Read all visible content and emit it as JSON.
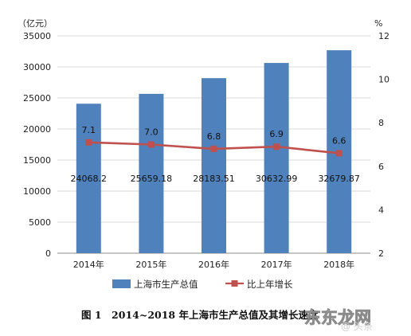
{
  "chart_data": {
    "type": "bar",
    "categories": [
      "2014年",
      "2015年",
      "2016年",
      "2017年",
      "2018年"
    ],
    "series": [
      {
        "name": "上海市生产总值",
        "type": "bar",
        "axis": "left",
        "color": "#4f81bd",
        "values": [
          24068.2,
          25659.18,
          28183.51,
          30632.99,
          32679.87
        ],
        "labels": [
          "24068.2",
          "25659.18",
          "28183.51",
          "30632.99",
          "32679.87"
        ]
      },
      {
        "name": "比上年增长",
        "type": "line",
        "axis": "right",
        "color": "#c0504d",
        "values": [
          7.1,
          7.0,
          6.8,
          6.9,
          6.6
        ],
        "labels": [
          "7.1",
          "7.0",
          "6.8",
          "6.9",
          "6.6"
        ]
      }
    ],
    "y_left": {
      "unit": "（亿元）",
      "ylim": [
        0,
        35000
      ],
      "ticks": [
        0,
        5000,
        10000,
        15000,
        20000,
        25000,
        30000,
        35000
      ],
      "tick_labels": [
        "0",
        "5000",
        "10000",
        "15000",
        "20000",
        "25000",
        "30000",
        "35000"
      ]
    },
    "y_right": {
      "unit": "%",
      "ylim": [
        2,
        12
      ],
      "ticks": [
        2,
        4,
        6,
        8,
        10,
        12
      ],
      "tick_labels": [
        "2",
        "4",
        "6",
        "8",
        "10",
        "12"
      ]
    },
    "grid": true,
    "legend_position": "bottom",
    "caption": "图 1　2014~2018 年上海市生产总值及其增长速度"
  },
  "watermark": {
    "text": "东东龙网",
    "sub": "@ 头条"
  }
}
